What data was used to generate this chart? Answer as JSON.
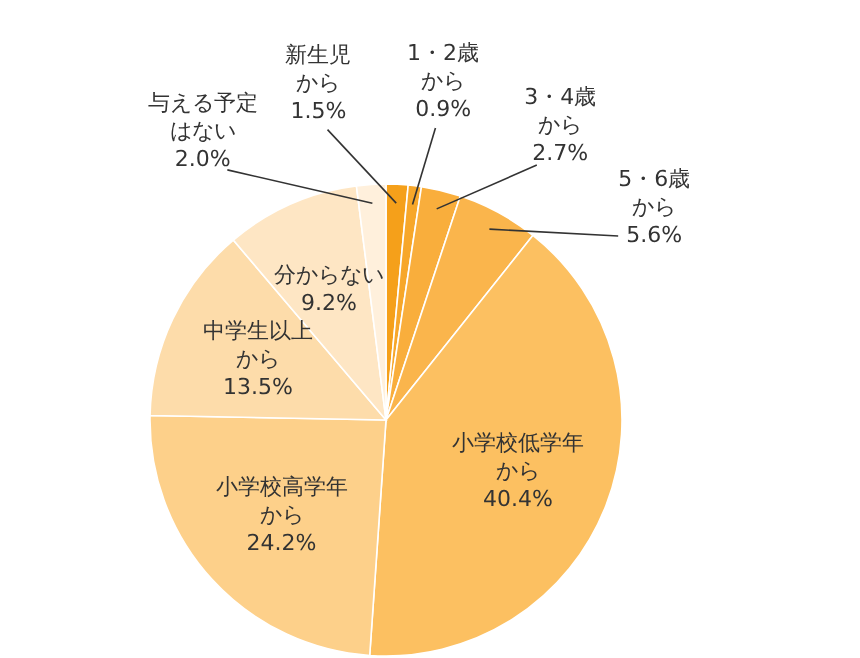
{
  "chart_data": {
    "type": "pie",
    "categories": [
      "新生児から",
      "1・2歳から",
      "3・4歳から",
      "5・6歳から",
      "小学校低学年から",
      "小学校高学年から",
      "中学生以上から",
      "分からない",
      "与える予定はない"
    ],
    "values": [
      1.5,
      0.9,
      2.7,
      5.6,
      40.4,
      24.2,
      13.5,
      9.2,
      2.0
    ],
    "value_labels": [
      "1.5%",
      "0.9%",
      "2.7%",
      "5.6%",
      "40.4%",
      "24.2%",
      "13.5%",
      "9.2%",
      "2.0%"
    ],
    "colors": [
      "#f5a01a",
      "#f7a72a",
      "#f9ae3c",
      "#fab54c",
      "#fcc061",
      "#fdd08a",
      "#fddcaa",
      "#fee6c4",
      "#fff0dc"
    ]
  }
}
